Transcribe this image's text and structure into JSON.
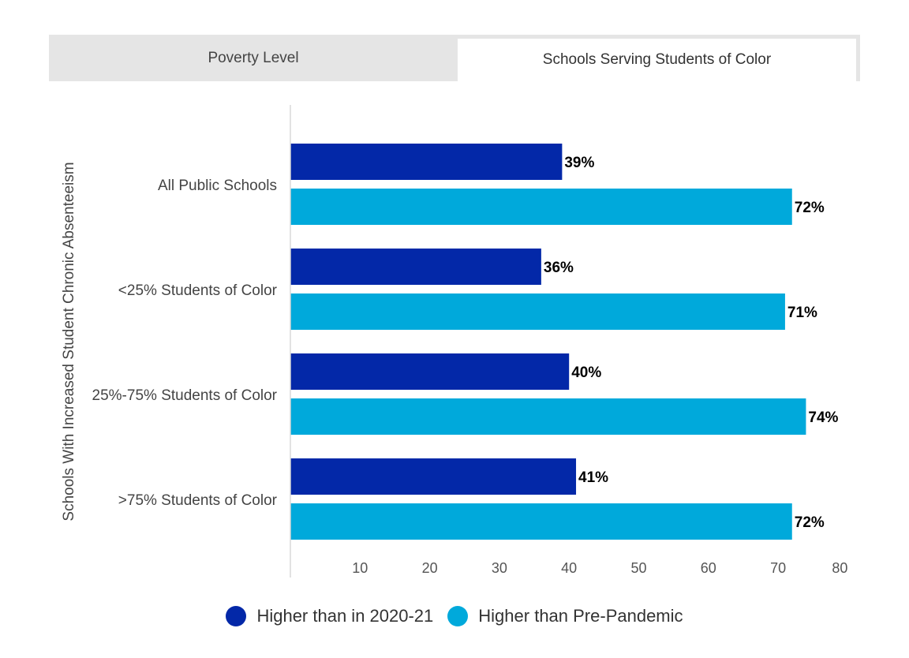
{
  "tabs": [
    {
      "label": "Poverty Level",
      "active": false
    },
    {
      "label": "Schools Serving Students of Color",
      "active": true
    }
  ],
  "chart_data": {
    "type": "bar",
    "orientation": "horizontal",
    "ylabel": "Schools With Increased Student Chronic Absenteeism",
    "xlabel": "",
    "categories": [
      "All Public Schools",
      "<25% Students of Color",
      "25%-75% Students of Color",
      ">75% Students of Color"
    ],
    "series": [
      {
        "name": "Higher than in 2020-21",
        "color": "#0328a8",
        "values": [
          39,
          36,
          40,
          41
        ],
        "labels": [
          "39%",
          "36%",
          "40%",
          "41%"
        ]
      },
      {
        "name": "Higher than Pre-Pandemic",
        "color": "#00a9db",
        "values": [
          72,
          71,
          74,
          72
        ],
        "labels": [
          "72%",
          "71%",
          "74%",
          "72%"
        ]
      }
    ],
    "xlim": [
      0,
      80
    ],
    "xticks": [
      10,
      20,
      30,
      40,
      50,
      60,
      70,
      80
    ],
    "grid": false,
    "legend_position": "bottom"
  }
}
